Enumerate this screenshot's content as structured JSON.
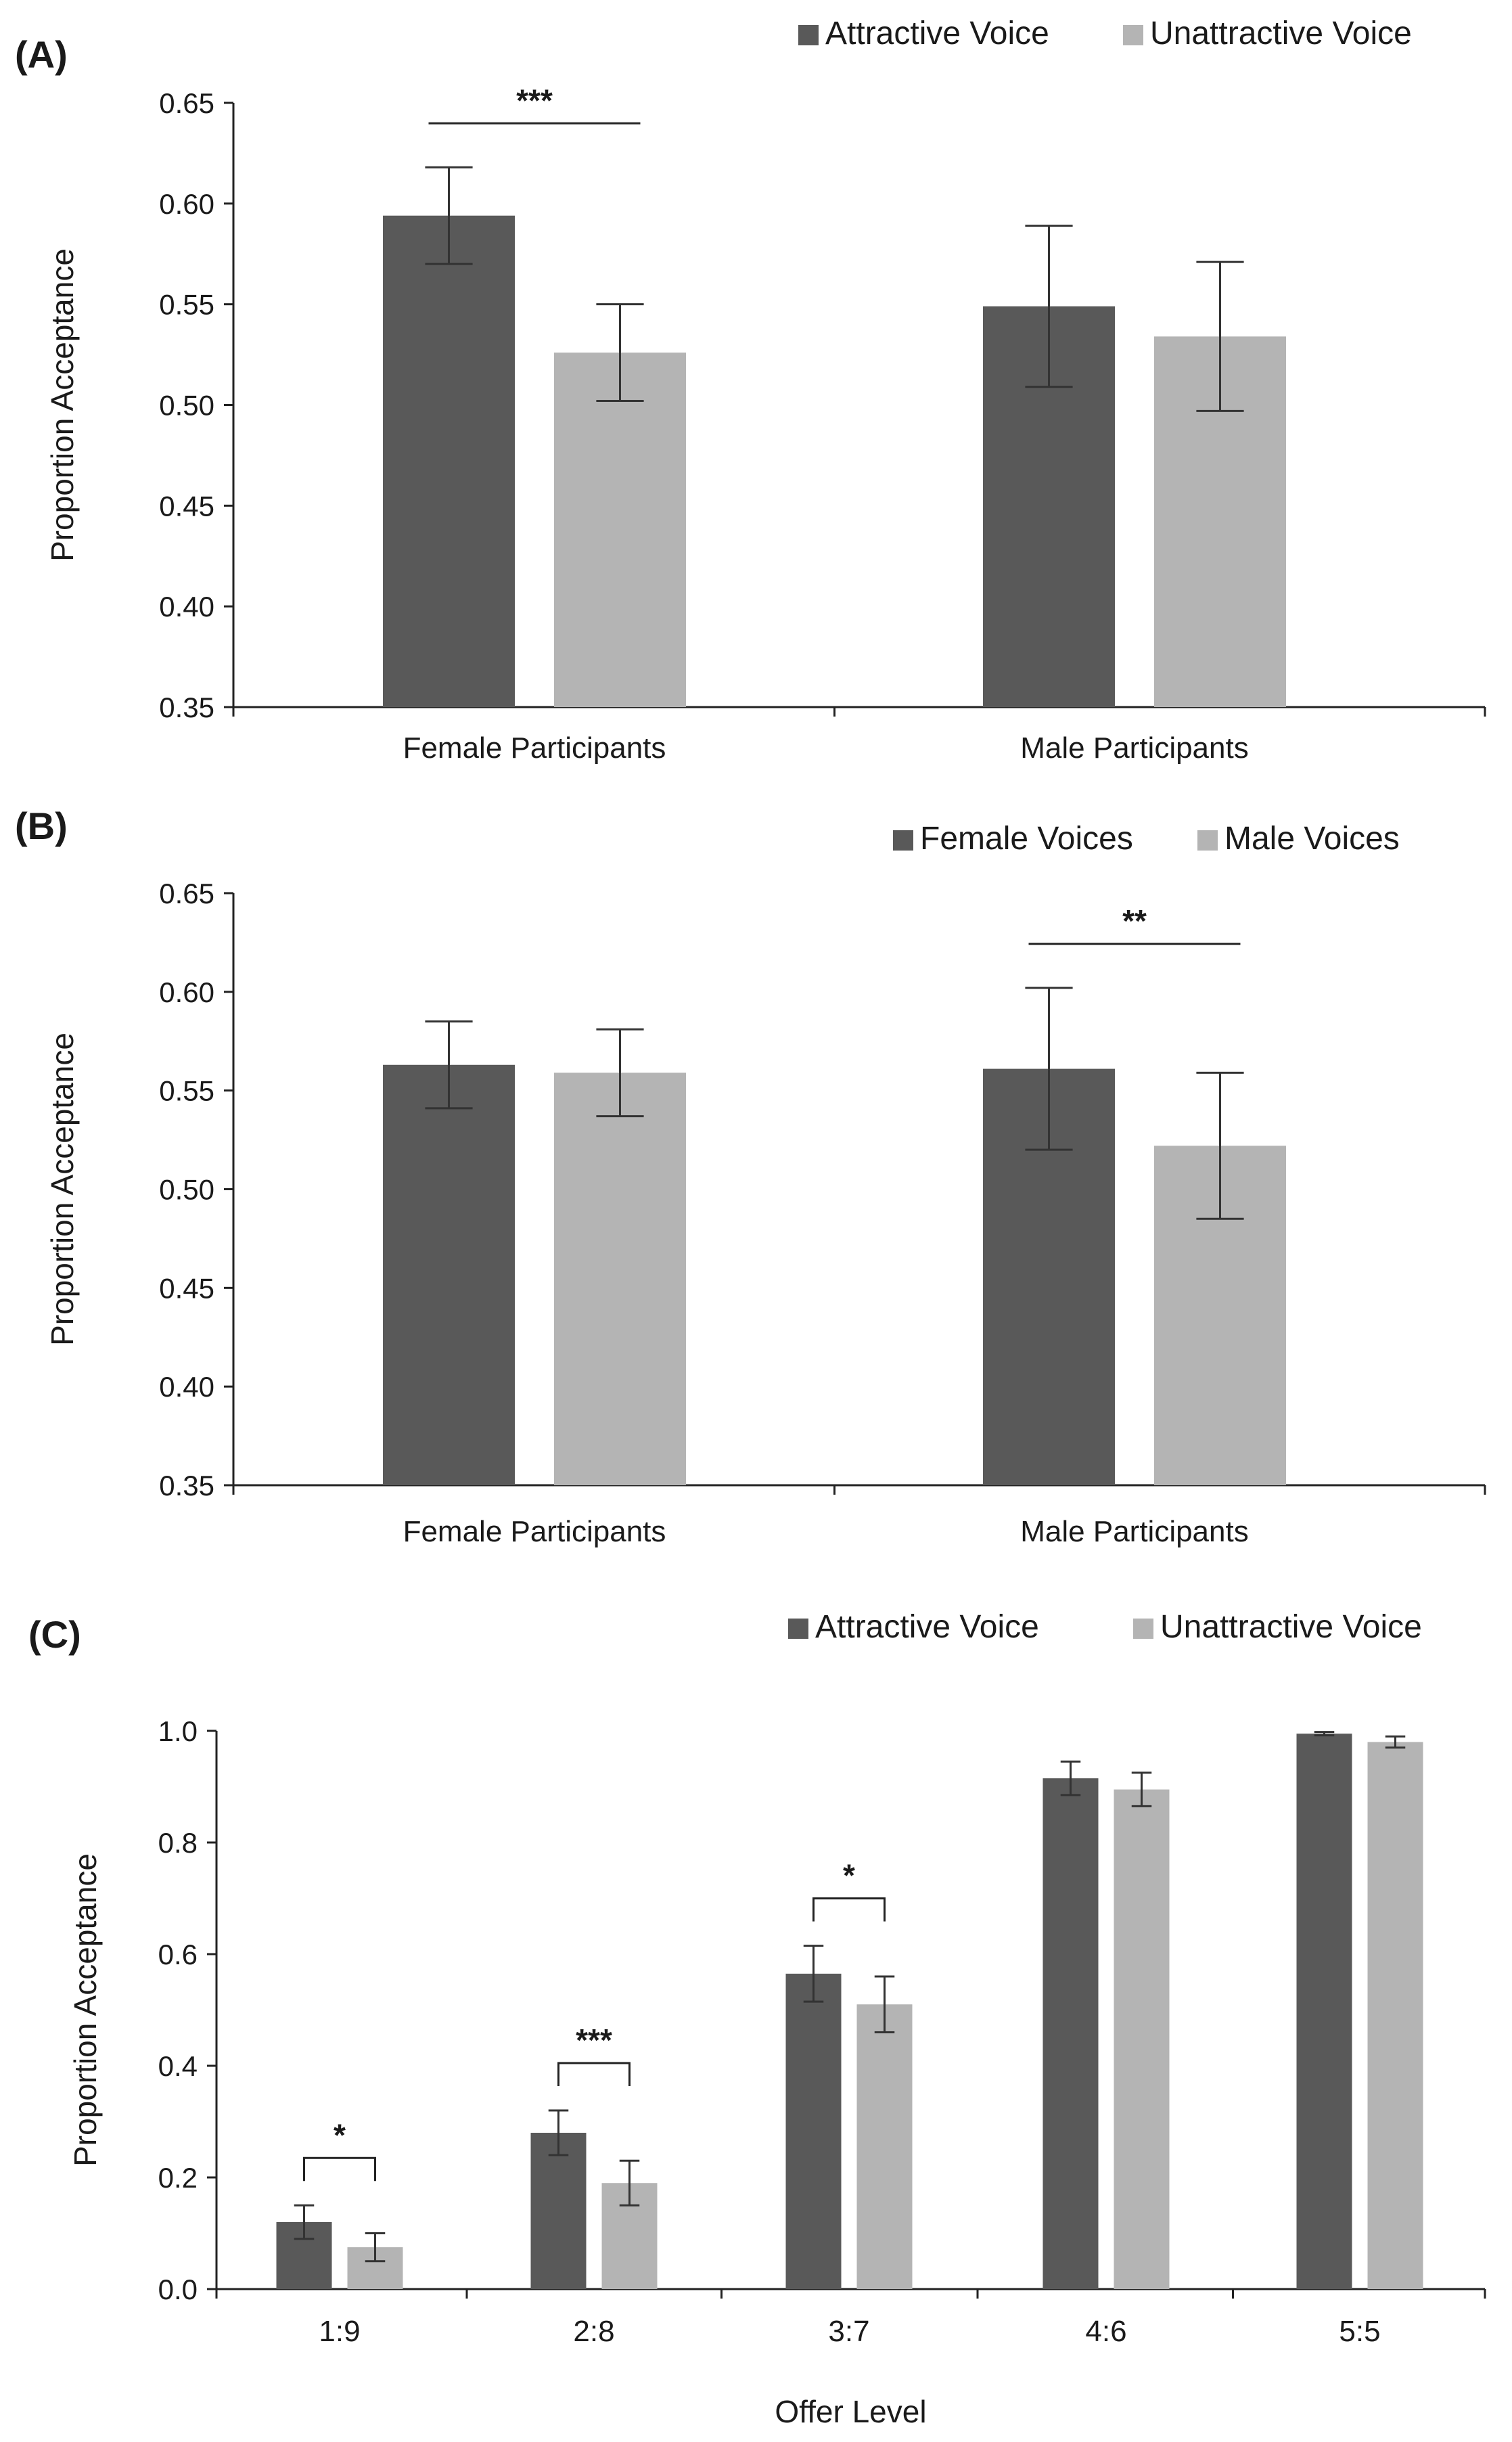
{
  "colors": {
    "series_a": "#595959",
    "series_b": "#b4b4b4",
    "axis": "#222222"
  },
  "chart_data": [
    {
      "type": "bar",
      "panel_label": "(A)",
      "ylabel": "Proportion Acceptance",
      "xlabel": "",
      "ylim": [
        0.35,
        0.65
      ],
      "yticks": [
        "0.35",
        "0.40",
        "0.45",
        "0.50",
        "0.55",
        "0.60",
        "0.65"
      ],
      "categories": [
        "Female Participants",
        "Male Participants"
      ],
      "series": [
        {
          "name": "Attractive Voice",
          "values": [
            0.594,
            0.549
          ],
          "errors": [
            0.024,
            0.04
          ]
        },
        {
          "name": "Unattractive Voice",
          "values": [
            0.526,
            0.534
          ],
          "errors": [
            0.024,
            0.037
          ]
        }
      ],
      "significance": [
        {
          "category": 0,
          "label": "***",
          "style": "line"
        }
      ]
    },
    {
      "type": "bar",
      "panel_label": "(B)",
      "ylabel": "Proportion Acceptance",
      "xlabel": "",
      "ylim": [
        0.35,
        0.65
      ],
      "yticks": [
        "0.35",
        "0.40",
        "0.45",
        "0.50",
        "0.55",
        "0.60",
        "0.65"
      ],
      "categories": [
        "Female Participants",
        "Male Participants"
      ],
      "series": [
        {
          "name": "Female Voices",
          "values": [
            0.563,
            0.561
          ],
          "errors": [
            0.022,
            0.041
          ]
        },
        {
          "name": "Male Voices",
          "values": [
            0.559,
            0.522
          ],
          "errors": [
            0.022,
            0.037
          ]
        }
      ],
      "significance": [
        {
          "category": 1,
          "label": "**",
          "style": "line"
        }
      ]
    },
    {
      "type": "bar",
      "panel_label": "(C)",
      "ylabel": "Proportion Acceptance",
      "xlabel": "Offer Level",
      "ylim": [
        0.0,
        1.0
      ],
      "yticks": [
        "0.0",
        "0.2",
        "0.4",
        "0.6",
        "0.8",
        "1.0"
      ],
      "categories": [
        "1:9",
        "2:8",
        "3:7",
        "4:6",
        "5:5"
      ],
      "series": [
        {
          "name": "Attractive Voice",
          "values": [
            0.12,
            0.28,
            0.565,
            0.915,
            0.995
          ],
          "errors": [
            0.03,
            0.04,
            0.05,
            0.03,
            0.003
          ]
        },
        {
          "name": "Unattractive Voice",
          "values": [
            0.075,
            0.19,
            0.51,
            0.895,
            0.98
          ],
          "errors": [
            0.025,
            0.04,
            0.05,
            0.03,
            0.01
          ]
        }
      ],
      "significance": [
        {
          "category": 0,
          "label": "*",
          "style": "bracket"
        },
        {
          "category": 1,
          "label": "***",
          "style": "bracket"
        },
        {
          "category": 2,
          "label": "*",
          "style": "bracket"
        }
      ]
    }
  ]
}
